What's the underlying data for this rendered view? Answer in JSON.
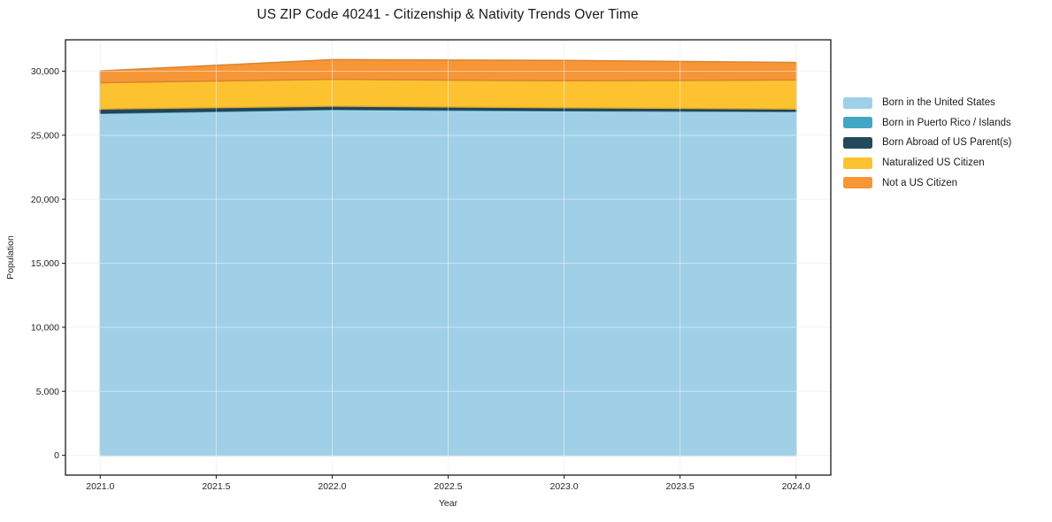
{
  "chart": {
    "title": "US ZIP Code 40241 - Citizenship & Nativity Trends Over Time",
    "xlabel": "Year",
    "ylabel": "Population"
  },
  "chart_data": {
    "type": "area",
    "stacked": true,
    "title": "US ZIP Code 40241 - Citizenship & Nativity Trends Over Time",
    "xlabel": "Year",
    "ylabel": "Population",
    "x": [
      2021,
      2022,
      2023,
      2024
    ],
    "series": [
      {
        "name": "Born in the United States",
        "color": "#a0d0e8",
        "values": [
          26700,
          27000,
          26900,
          26850
        ]
      },
      {
        "name": "Born in Puerto Rico / Islands",
        "color": "#41a6c4",
        "values": [
          50,
          45,
          50,
          40
        ]
      },
      {
        "name": "Born Abroad of US Parent(s)",
        "color": "#24485c",
        "values": [
          300,
          225,
          200,
          160
        ]
      },
      {
        "name": "Naturalized US Citizen",
        "color": "#fdc230",
        "values": [
          2050,
          2100,
          2100,
          2270
        ]
      },
      {
        "name": "Not a US Citizen",
        "color": "#f79637",
        "values": [
          920,
          1535,
          1590,
          1360
        ]
      }
    ],
    "xlim": [
      2020.85,
      2024.15
    ],
    "ylim": [
      -1545,
      32450
    ],
    "grid": true,
    "legend_position": "right-outside",
    "x_ticks": [
      {
        "v": 2021.0,
        "label": "2021.0"
      },
      {
        "v": 2021.5,
        "label": "2021.5"
      },
      {
        "v": 2022.0,
        "label": "2022.0"
      },
      {
        "v": 2022.5,
        "label": "2022.5"
      },
      {
        "v": 2023.0,
        "label": "2023.0"
      },
      {
        "v": 2023.5,
        "label": "2023.5"
      },
      {
        "v": 2024.0,
        "label": "2024.0"
      }
    ],
    "y_ticks": [
      {
        "v": 0,
        "label": "0"
      },
      {
        "v": 5000,
        "label": "5,000"
      },
      {
        "v": 10000,
        "label": "10,000"
      },
      {
        "v": 15000,
        "label": "15,000"
      },
      {
        "v": 20000,
        "label": "20,000"
      },
      {
        "v": 25000,
        "label": "25,000"
      },
      {
        "v": 30000,
        "label": "30,000"
      }
    ],
    "colors": {
      "grid": "#ebebee",
      "grid_over_area": "rgba(255,255,255,0.45)",
      "spine": "#1a1a1a",
      "tick": "#262626",
      "tick_label": "#262626",
      "background": "#ffffff"
    }
  }
}
